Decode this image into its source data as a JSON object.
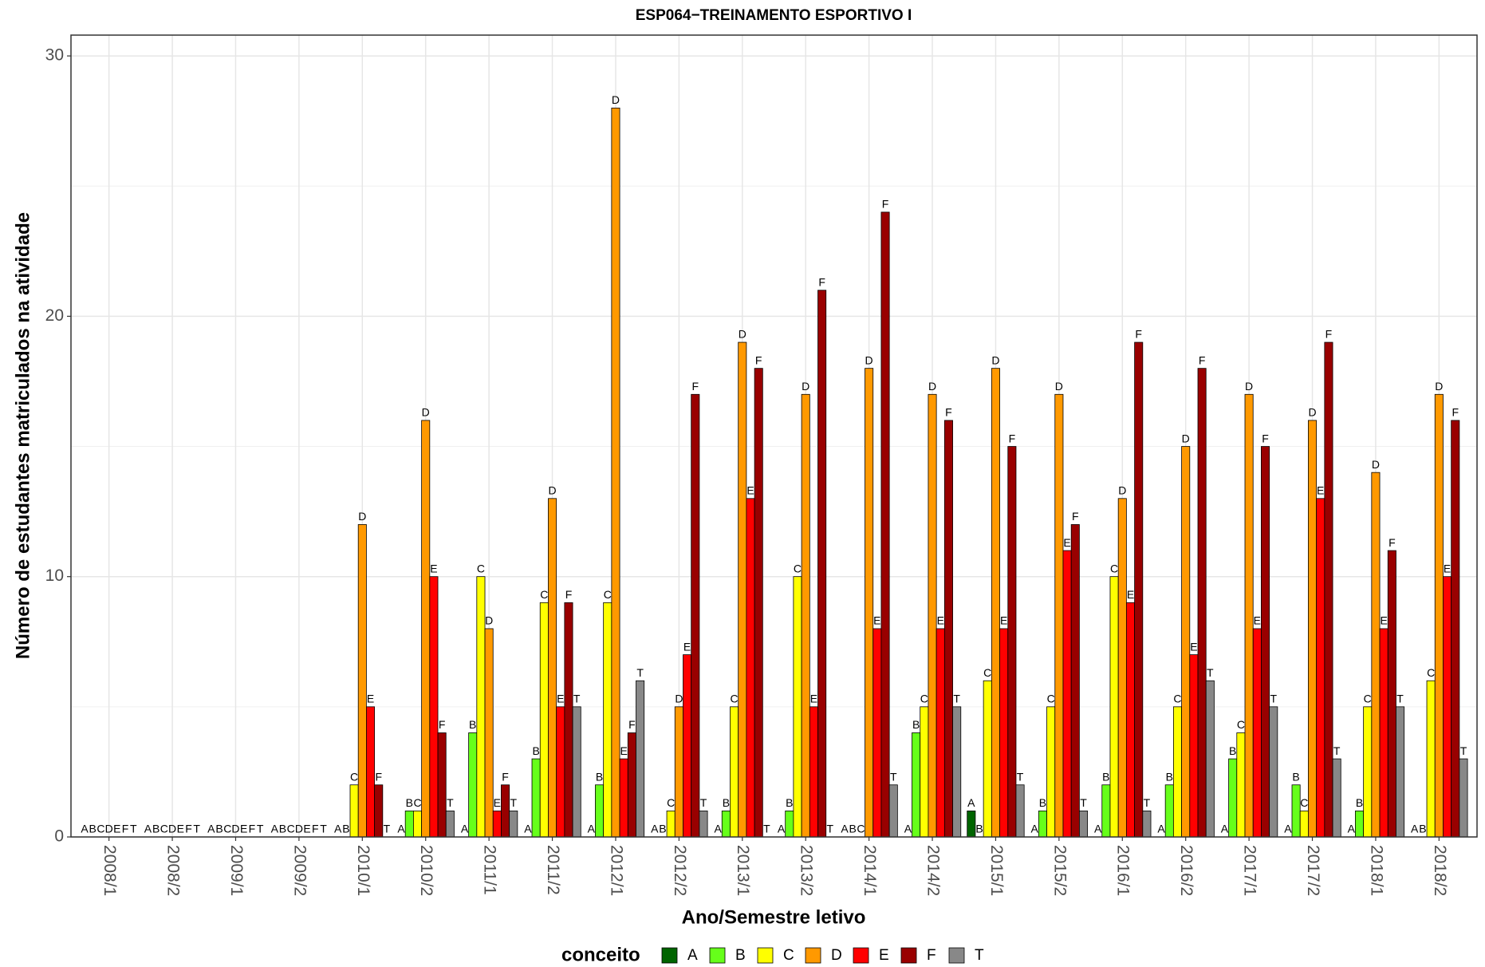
{
  "chart_data": {
    "type": "bar",
    "title": "ESP064−TREINAMENTO ESPORTIVO I",
    "x_label": "Ano/Semestre letivo",
    "y_label": "Número de estudantes matriculados na atividade",
    "legend_title": "conceito",
    "categories": [
      "2008/1",
      "2008/2",
      "2009/1",
      "2009/2",
      "2010/1",
      "2010/2",
      "2011/1",
      "2011/2",
      "2012/1",
      "2012/2",
      "2013/1",
      "2013/2",
      "2014/1",
      "2014/2",
      "2015/1",
      "2015/2",
      "2016/1",
      "2016/2",
      "2017/1",
      "2017/2",
      "2018/1",
      "2018/2"
    ],
    "series": [
      {
        "name": "A",
        "color": "#006400",
        "values": [
          0,
          0,
          0,
          0,
          0,
          0,
          0,
          0,
          0,
          0,
          0,
          0,
          0,
          0,
          1,
          0,
          0,
          0,
          0,
          0,
          0,
          0
        ]
      },
      {
        "name": "B",
        "color": "#66ff1a",
        "values": [
          0,
          0,
          0,
          0,
          0,
          1,
          4,
          3,
          2,
          0,
          1,
          1,
          0,
          4,
          0,
          1,
          2,
          2,
          3,
          2,
          1,
          0
        ]
      },
      {
        "name": "C",
        "color": "#ffff00",
        "values": [
          0,
          0,
          0,
          0,
          2,
          1,
          10,
          9,
          9,
          1,
          5,
          10,
          0,
          5,
          6,
          5,
          10,
          5,
          4,
          1,
          5,
          6
        ]
      },
      {
        "name": "D",
        "color": "#ff9900",
        "values": [
          0,
          0,
          0,
          0,
          12,
          16,
          8,
          13,
          28,
          5,
          19,
          17,
          18,
          17,
          18,
          17,
          13,
          15,
          17,
          16,
          14,
          17
        ]
      },
      {
        "name": "E",
        "color": "#ff0000",
        "values": [
          0,
          0,
          0,
          0,
          5,
          10,
          1,
          5,
          3,
          7,
          13,
          5,
          8,
          8,
          8,
          11,
          9,
          7,
          8,
          13,
          8,
          10
        ]
      },
      {
        "name": "F",
        "color": "#990000",
        "values": [
          0,
          0,
          0,
          0,
          2,
          4,
          2,
          9,
          4,
          17,
          18,
          21,
          24,
          16,
          15,
          12,
          19,
          18,
          15,
          19,
          11,
          16
        ]
      },
      {
        "name": "T",
        "color": "#888888",
        "values": [
          0,
          0,
          0,
          0,
          0,
          1,
          1,
          5,
          6,
          1,
          0,
          0,
          2,
          5,
          2,
          1,
          1,
          6,
          5,
          3,
          5,
          3
        ]
      }
    ],
    "ylim": [
      0,
      30.8
    ],
    "yticks": [
      0,
      10,
      20,
      30
    ],
    "yticks_minor": [
      5,
      15,
      25
    ],
    "grid": true,
    "legend": "bottom"
  }
}
